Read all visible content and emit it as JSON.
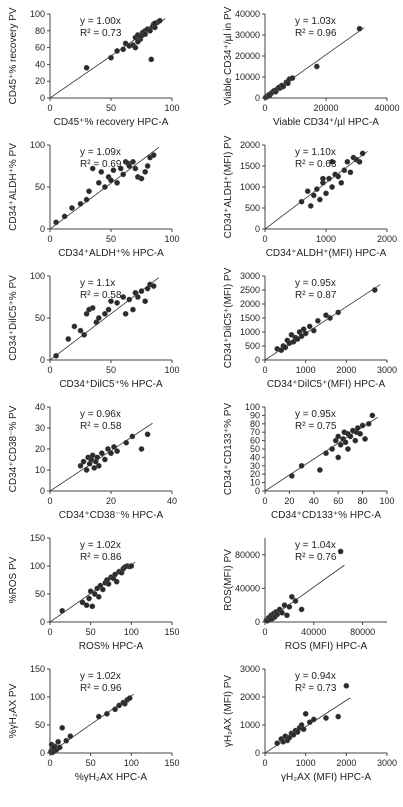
{
  "chart_data": [
    {
      "type": "scatter",
      "title": "",
      "xlabel": "CD45⁺% recovery HPC-A",
      "ylabel": "CD45⁺% recovery PV",
      "equation": "y = 1.00x",
      "r2": "R² = 0.73",
      "xlim": [
        0,
        100
      ],
      "ylim": [
        0,
        100
      ],
      "xticks": [
        0,
        50,
        100
      ],
      "yticks": [
        0,
        20,
        40,
        60,
        80,
        100
      ],
      "x": [
        30,
        50,
        55,
        60,
        62,
        65,
        68,
        70,
        72,
        74,
        75,
        76,
        78,
        80,
        82,
        84,
        85,
        86,
        88,
        90,
        70,
        72,
        78,
        83,
        86
      ],
      "y": [
        36,
        48,
        56,
        58,
        65,
        62,
        63,
        72,
        75,
        70,
        74,
        78,
        80,
        82,
        80,
        85,
        88,
        84,
        90,
        92,
        60,
        67,
        76,
        46,
        89
      ]
    },
    {
      "type": "scatter",
      "title": "",
      "xlabel": "Viable CD34⁺/µl HPC-A",
      "ylabel": "Viable CD34⁺/µl in PV",
      "equation": "y = 1.03x",
      "r2": "R² = 0.96",
      "xlim": [
        0,
        40000
      ],
      "ylim": [
        0,
        40000
      ],
      "xticks": [
        0,
        20000,
        40000
      ],
      "yticks": [
        0,
        10000,
        20000,
        30000,
        40000
      ],
      "x": [
        200,
        500,
        900,
        1200,
        1500,
        2000,
        2500,
        3000,
        3500,
        4000,
        4500,
        5000,
        5500,
        6000,
        7000,
        7500,
        8000,
        9000,
        17000,
        31000
      ],
      "y": [
        300,
        600,
        800,
        1500,
        1200,
        2200,
        2800,
        3500,
        3000,
        4200,
        5000,
        4800,
        6000,
        5500,
        7500,
        7000,
        9000,
        9500,
        15000,
        33000
      ]
    },
    {
      "type": "scatter",
      "title": "",
      "xlabel": "CD34⁺ALDH⁺% HPC-A",
      "ylabel": "CD34⁺ALDH⁺% PV",
      "equation": "y = 1.09x",
      "r2": "R² = 0.69",
      "xlim": [
        0,
        100
      ],
      "ylim": [
        0,
        100
      ],
      "xticks": [
        0,
        50,
        100
      ],
      "yticks": [
        0,
        50,
        100
      ],
      "x": [
        5,
        12,
        18,
        25,
        30,
        32,
        35,
        40,
        42,
        45,
        48,
        50,
        52,
        55,
        58,
        60,
        62,
        64,
        65,
        68,
        70,
        72,
        75,
        78,
        80,
        82,
        85
      ],
      "y": [
        8,
        15,
        25,
        30,
        35,
        45,
        72,
        55,
        68,
        50,
        62,
        58,
        70,
        55,
        72,
        65,
        80,
        78,
        75,
        80,
        72,
        62,
        60,
        68,
        75,
        85,
        88
      ]
    },
    {
      "type": "scatter",
      "title": "",
      "xlabel": "CD34⁺ALDH⁺(MFI) HPC-A",
      "ylabel": "CD34⁺ALDH⁺(MFI) PV",
      "equation": "y = 1.10x",
      "r2": "R² = 0.63",
      "xlim": [
        0,
        2000
      ],
      "ylim": [
        0,
        2000
      ],
      "xticks": [
        0,
        1000,
        2000
      ],
      "yticks": [
        0,
        500,
        1000,
        1500,
        2000
      ],
      "x": [
        600,
        700,
        750,
        800,
        850,
        900,
        950,
        1000,
        1050,
        1100,
        1150,
        1200,
        1250,
        1300,
        1350,
        1400,
        1450,
        1500,
        1550,
        1600,
        950,
        1100
      ],
      "y": [
        650,
        900,
        550,
        800,
        950,
        700,
        1100,
        850,
        1200,
        1000,
        1300,
        1250,
        1100,
        1400,
        1600,
        1350,
        1700,
        1650,
        1600,
        1800,
        1200,
        1600
      ]
    },
    {
      "type": "scatter",
      "title": "",
      "xlabel": "CD34⁺DilC5⁺% HPC-A",
      "ylabel": "CD34⁺DilC5⁺% PV",
      "equation": "y = 1.1x",
      "r2": "R² = 0.58",
      "xlim": [
        0,
        100
      ],
      "ylim": [
        0,
        100
      ],
      "xticks": [
        0,
        50,
        100
      ],
      "yticks": [
        0,
        50,
        100
      ],
      "x": [
        5,
        15,
        20,
        25,
        28,
        30,
        32,
        35,
        38,
        40,
        45,
        48,
        50,
        55,
        60,
        62,
        65,
        68,
        70,
        72,
        75,
        78,
        80,
        82,
        85
      ],
      "y": [
        5,
        25,
        40,
        35,
        30,
        55,
        60,
        62,
        45,
        50,
        55,
        60,
        70,
        68,
        75,
        55,
        72,
        60,
        80,
        75,
        82,
        70,
        85,
        90,
        88
      ]
    },
    {
      "type": "scatter",
      "title": "",
      "xlabel": "CD34⁺DilC5⁺(MFI) HPC-A",
      "ylabel": "CD34⁺DilC5⁺(MFI) PV",
      "equation": "y = 0.95x",
      "r2": "R² = 0.87",
      "xlim": [
        0,
        3000
      ],
      "ylim": [
        0,
        3000
      ],
      "xticks": [
        0,
        1000,
        2000,
        3000
      ],
      "yticks": [
        0,
        500,
        1000,
        1500,
        2000,
        2500,
        3000
      ],
      "x": [
        300,
        400,
        450,
        500,
        550,
        600,
        650,
        700,
        750,
        800,
        850,
        900,
        950,
        1000,
        1100,
        1200,
        1300,
        1500,
        1600,
        1800,
        2700
      ],
      "y": [
        400,
        350,
        500,
        450,
        700,
        600,
        900,
        650,
        800,
        750,
        1000,
        850,
        1100,
        950,
        1200,
        1050,
        1400,
        1600,
        1500,
        1700,
        2500
      ]
    },
    {
      "type": "scatter",
      "title": "",
      "xlabel": "CD34⁺CD38⁻% HPC-A",
      "ylabel": "CD34⁺CD38⁻% PV",
      "equation": "y = 0.96x",
      "r2": "R² = 0.58",
      "xlim": [
        0,
        40
      ],
      "ylim": [
        0,
        40
      ],
      "xticks": [
        0,
        20,
        40
      ],
      "yticks": [
        0,
        10,
        20,
        30,
        40
      ],
      "x": [
        10,
        11,
        12,
        12.5,
        13,
        13.5,
        14,
        14.5,
        15,
        15.5,
        16,
        17,
        18,
        19,
        20,
        21,
        22,
        25,
        27,
        30,
        32
      ],
      "y": [
        12,
        14,
        10,
        16,
        13,
        15,
        17,
        11,
        14,
        16,
        12,
        18,
        15,
        20,
        18,
        21,
        19,
        23,
        26,
        20,
        27
      ]
    },
    {
      "type": "scatter",
      "title": "",
      "xlabel": "CD34⁺CD133⁺% HPC-A",
      "ylabel": "CD34⁺CD133⁺% PV",
      "equation": "y = 0.95x",
      "r2": "R² = 0.75",
      "xlim": [
        0,
        100
      ],
      "ylim": [
        0,
        100
      ],
      "xticks": [
        0,
        20,
        40,
        60,
        80,
        100
      ],
      "yticks": [
        0,
        10,
        20,
        30,
        40,
        50,
        60,
        70,
        80,
        90,
        100
      ],
      "x": [
        22,
        30,
        45,
        50,
        55,
        58,
        60,
        62,
        64,
        65,
        66,
        68,
        70,
        72,
        74,
        75,
        76,
        78,
        80,
        82,
        85,
        88,
        60,
        68
      ],
      "y": [
        18,
        30,
        25,
        45,
        50,
        60,
        65,
        55,
        62,
        70,
        58,
        68,
        65,
        72,
        60,
        70,
        75,
        68,
        78,
        62,
        80,
        90,
        40,
        50
      ]
    },
    {
      "type": "scatter",
      "title": "",
      "xlabel": "ROS% HPC-A",
      "ylabel": "%ROS PV",
      "equation": "y = 1.02x",
      "r2": "R² = 0.86",
      "xlim": [
        0,
        150
      ],
      "ylim": [
        0,
        150
      ],
      "xticks": [
        0,
        50,
        100,
        150
      ],
      "yticks": [
        0,
        50,
        100,
        150
      ],
      "x": [
        15,
        40,
        45,
        48,
        50,
        52,
        55,
        58,
        60,
        62,
        65,
        68,
        70,
        72,
        75,
        78,
        80,
        82,
        85,
        88,
        90,
        92,
        95,
        98,
        100
      ],
      "y": [
        20,
        35,
        30,
        42,
        55,
        28,
        50,
        60,
        45,
        65,
        58,
        70,
        75,
        68,
        80,
        78,
        85,
        72,
        90,
        88,
        95,
        98,
        100,
        99,
        100
      ]
    },
    {
      "type": "scatter",
      "title": "",
      "xlabel": "ROS (MFI) HPC-A",
      "ylabel": "ROS(MFI) PV",
      "equation": "y = 1.04x",
      "r2": "R² = 0.76",
      "xlim": [
        0,
        100000
      ],
      "ylim": [
        0,
        100000
      ],
      "xticks": [
        0,
        40000,
        80000
      ],
      "yticks": [
        0,
        40000,
        80000
      ],
      "x": [
        1000,
        2000,
        3000,
        4000,
        5000,
        6000,
        7000,
        8000,
        9000,
        10000,
        12000,
        14000,
        16000,
        18000,
        20000,
        22000,
        25000,
        30000,
        62000
      ],
      "y": [
        2000,
        1500,
        5000,
        3000,
        8000,
        4000,
        10000,
        6000,
        12000,
        9000,
        15000,
        11000,
        20000,
        8000,
        18000,
        30000,
        25000,
        15000,
        84000
      ]
    },
    {
      "type": "scatter",
      "title": "",
      "xlabel": "%γH₂AX HPC-A",
      "ylabel": "%γH₂AX PV",
      "equation": "y = 1.02x",
      "r2": "R² = 0.96",
      "xlim": [
        0,
        150
      ],
      "ylim": [
        0,
        150
      ],
      "xticks": [
        0,
        50,
        100,
        150
      ],
      "yticks": [
        0,
        50,
        100,
        150
      ],
      "x": [
        1,
        2,
        3,
        4,
        5,
        6,
        8,
        10,
        12,
        15,
        20,
        25,
        60,
        70,
        80,
        85,
        90,
        92,
        95,
        98,
        2,
        5
      ],
      "y": [
        2,
        5,
        1,
        8,
        3,
        12,
        6,
        20,
        10,
        45,
        22,
        30,
        65,
        70,
        78,
        85,
        90,
        88,
        95,
        98,
        15,
        10
      ]
    },
    {
      "type": "scatter",
      "title": "",
      "xlabel": "γH₂AX (MFI) HPC-A",
      "ylabel": "γH₂AX (MFI) PV",
      "equation": "y = 0.94x",
      "r2": "R² = 0.73",
      "xlim": [
        0,
        3000
      ],
      "ylim": [
        0,
        3000
      ],
      "xticks": [
        0,
        1000,
        2000,
        3000
      ],
      "yticks": [
        0,
        1000,
        2000,
        3000
      ],
      "x": [
        300,
        400,
        450,
        500,
        550,
        600,
        650,
        700,
        750,
        800,
        850,
        900,
        950,
        1000,
        1100,
        1200,
        1500,
        1800,
        2000
      ],
      "y": [
        350,
        500,
        400,
        600,
        450,
        550,
        700,
        650,
        800,
        750,
        900,
        1000,
        850,
        1400,
        1100,
        1200,
        1250,
        1300,
        2400
      ]
    }
  ]
}
